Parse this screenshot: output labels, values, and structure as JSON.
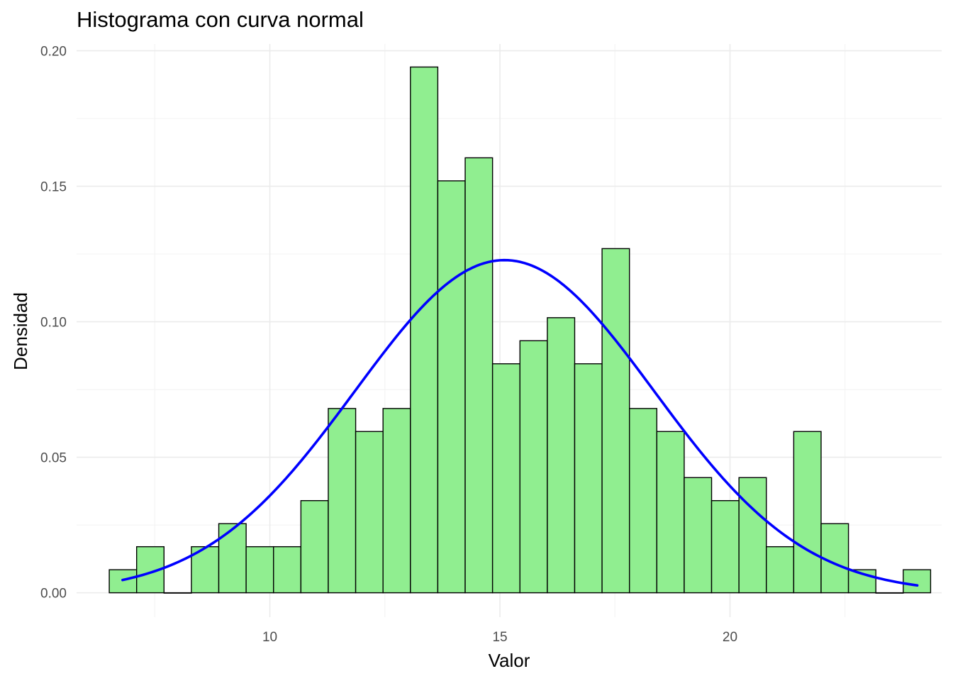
{
  "chart_data": {
    "type": "bar",
    "title": "Histograma con curva normal",
    "xlabel": "Valor",
    "ylabel": "Densidad",
    "xlim": [
      5.8,
      24.6
    ],
    "ylim": [
      -0.009,
      0.2025
    ],
    "x_ticks": [
      10,
      15,
      20
    ],
    "y_ticks": [
      0,
      0.05,
      0.1,
      0.15,
      0.2
    ],
    "y_tick_labels": [
      "0.00",
      "0.05",
      "0.10",
      "0.15",
      "0.20"
    ],
    "grid": true,
    "bin_width": 0.595,
    "bins": [
      {
        "start": 6.51,
        "end": 7.105,
        "density": 0.0085
      },
      {
        "start": 7.105,
        "end": 7.7,
        "density": 0.017
      },
      {
        "start": 7.7,
        "end": 8.295,
        "density": 0.0
      },
      {
        "start": 8.295,
        "end": 8.89,
        "density": 0.017
      },
      {
        "start": 8.89,
        "end": 9.485,
        "density": 0.0255
      },
      {
        "start": 9.485,
        "end": 10.08,
        "density": 0.017
      },
      {
        "start": 10.08,
        "end": 10.675,
        "density": 0.017
      },
      {
        "start": 10.675,
        "end": 11.27,
        "density": 0.034
      },
      {
        "start": 11.27,
        "end": 11.865,
        "density": 0.068
      },
      {
        "start": 11.865,
        "end": 12.46,
        "density": 0.0595
      },
      {
        "start": 12.46,
        "end": 13.055,
        "density": 0.068
      },
      {
        "start": 13.055,
        "end": 13.65,
        "density": 0.194
      },
      {
        "start": 13.65,
        "end": 14.245,
        "density": 0.152
      },
      {
        "start": 14.245,
        "end": 14.84,
        "density": 0.1605
      },
      {
        "start": 14.84,
        "end": 15.435,
        "density": 0.0845
      },
      {
        "start": 15.435,
        "end": 16.03,
        "density": 0.093
      },
      {
        "start": 16.03,
        "end": 16.625,
        "density": 0.1015
      },
      {
        "start": 16.625,
        "end": 17.22,
        "density": 0.0845
      },
      {
        "start": 17.22,
        "end": 17.815,
        "density": 0.127
      },
      {
        "start": 17.815,
        "end": 18.41,
        "density": 0.068
      },
      {
        "start": 18.41,
        "end": 19.005,
        "density": 0.0595
      },
      {
        "start": 19.005,
        "end": 19.6,
        "density": 0.0425
      },
      {
        "start": 19.6,
        "end": 20.195,
        "density": 0.034
      },
      {
        "start": 20.195,
        "end": 20.79,
        "density": 0.0425
      },
      {
        "start": 20.79,
        "end": 21.385,
        "density": 0.017
      },
      {
        "start": 21.385,
        "end": 21.98,
        "density": 0.0595
      },
      {
        "start": 21.98,
        "end": 22.575,
        "density": 0.0255
      },
      {
        "start": 22.575,
        "end": 23.17,
        "density": 0.0085
      },
      {
        "start": 23.17,
        "end": 23.765,
        "density": 0.0
      },
      {
        "start": 23.765,
        "end": 24.36,
        "density": 0.0085
      }
    ],
    "normal_curve": {
      "mean": 15.1,
      "sd": 3.25,
      "x_min": 6.8,
      "x_max": 24.07
    },
    "colors": {
      "bar_fill": "#90EE90",
      "bar_stroke": "#000000",
      "curve": "#0000FF",
      "grid_major": "#EBEBEB",
      "grid_minor": "#F4F4F4",
      "tick_label": "#4D4D4D"
    }
  }
}
